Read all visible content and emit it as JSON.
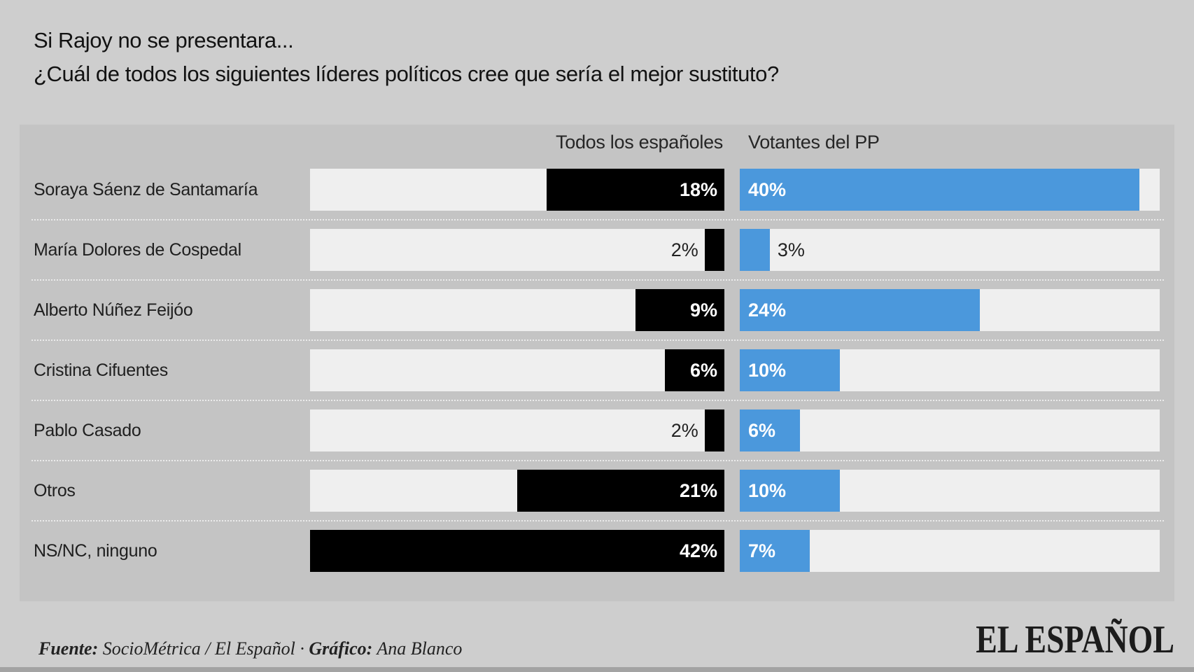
{
  "title": {
    "line1": "Si Rajoy no se presentara...",
    "line2": "¿Cuál de todos los siguientes líderes políticos cree que sería el mejor sustituto?"
  },
  "chart_data": {
    "type": "bar",
    "orientation": "horizontal",
    "title": "Si Rajoy no se presentara... ¿Cuál de todos los siguientes líderes políticos cree que sería el mejor sustituto?",
    "categories": [
      "Soraya Sáenz de Santamaría",
      "María Dolores de Cospedal",
      "Alberto Núñez Feijóo",
      "Cristina Cifuentes",
      "Pablo Casado",
      "Otros",
      "NS/NC, ninguno"
    ],
    "series": [
      {
        "name": "Todos los españoles",
        "color": "#000000",
        "values": [
          18,
          2,
          9,
          6,
          2,
          21,
          42
        ]
      },
      {
        "name": "Votantes del PP",
        "color": "#4b98dc",
        "values": [
          40,
          3,
          24,
          10,
          6,
          10,
          7
        ]
      }
    ],
    "value_suffix": "%",
    "xlim": [
      0,
      42
    ],
    "grid": false,
    "legend_position": "top-as-column-headers",
    "track_color": "#efefef",
    "panel_color": "#c4c4c4",
    "background_color": "#cecece"
  },
  "footer": {
    "source_label": "Fuente:",
    "source": "SocioMétrica / El Español",
    "separator": "·",
    "credit_label": "Gráfico:",
    "credit": "Ana Blanco",
    "logo": "EL ESPAÑOL"
  }
}
